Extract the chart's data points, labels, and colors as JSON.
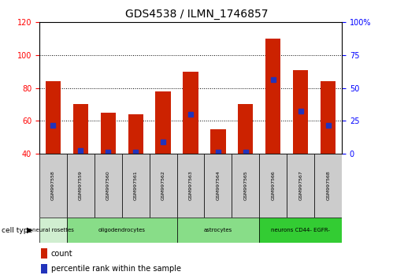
{
  "title": "GDS4538 / ILMN_1746857",
  "samples": [
    "GSM997558",
    "GSM997559",
    "GSM997560",
    "GSM997561",
    "GSM997562",
    "GSM997563",
    "GSM997564",
    "GSM997565",
    "GSM997566",
    "GSM997567",
    "GSM997568"
  ],
  "count_values": [
    84,
    70,
    65,
    64,
    78,
    90,
    55,
    70,
    110,
    91,
    84
  ],
  "percentile_values": [
    57,
    42,
    41,
    41,
    47,
    64,
    41,
    41,
    85,
    66,
    57
  ],
  "ylim_left": [
    40,
    120
  ],
  "ylim_right": [
    0,
    100
  ],
  "yticks_left": [
    40,
    60,
    80,
    100,
    120
  ],
  "yticks_right": [
    0,
    25,
    50,
    75,
    100
  ],
  "ytick_labels_right": [
    "0",
    "25",
    "50",
    "75",
    "100%"
  ],
  "bar_color": "#cc2200",
  "blue_color": "#2233bb",
  "cell_groups": [
    {
      "label": "neural rosettes",
      "indices": [
        0
      ],
      "color": "#d0eed0"
    },
    {
      "label": "oligodendrocytes",
      "indices": [
        1,
        2,
        3,
        4
      ],
      "color": "#88dd88"
    },
    {
      "label": "astrocytes",
      "indices": [
        5,
        6,
        7
      ],
      "color": "#88dd88"
    },
    {
      "label": "neurons CD44- EGFR-",
      "indices": [
        8,
        9,
        10
      ],
      "color": "#33cc33"
    }
  ],
  "label_bg_color": "#cccccc",
  "legend_count_color": "#cc2200",
  "legend_pct_color": "#2233bb"
}
